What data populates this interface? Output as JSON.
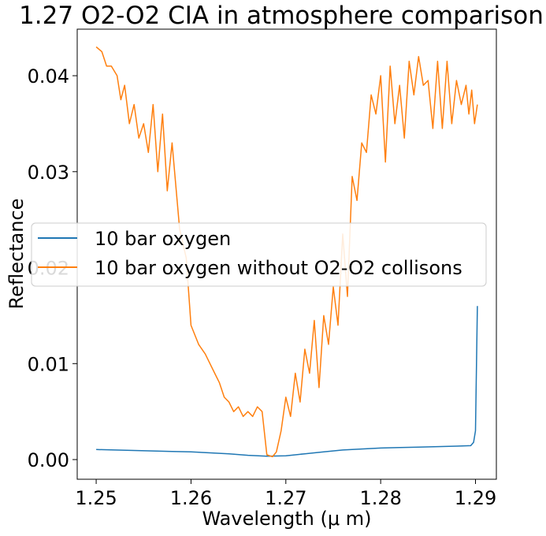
{
  "chart_data": {
    "type": "line",
    "title": "1.27 O2-O2 CIA in atmosphere comparison",
    "xlabel": "Wavelength (μ m)",
    "ylabel": "Reflectance",
    "xlim": [
      1.248,
      1.2922
    ],
    "ylim": [
      -0.00205,
      0.04485
    ],
    "x_ticks": [
      1.25,
      1.26,
      1.27,
      1.28,
      1.29
    ],
    "x_tick_labels": [
      "1.25",
      "1.26",
      "1.27",
      "1.28",
      "1.29"
    ],
    "y_ticks": [
      0.0,
      0.01,
      0.02,
      0.03,
      0.04
    ],
    "y_tick_labels": [
      "0.00",
      "0.01",
      "0.02",
      "0.03",
      "0.04"
    ],
    "grid": false,
    "legend_position": "center-left",
    "series": [
      {
        "name": "10 bar oxygen",
        "color": "#1f77b4",
        "x": [
          1.25,
          1.252,
          1.254,
          1.256,
          1.258,
          1.26,
          1.262,
          1.264,
          1.266,
          1.268,
          1.27,
          1.272,
          1.274,
          1.276,
          1.278,
          1.28,
          1.282,
          1.284,
          1.286,
          1.288,
          1.2895,
          1.2898,
          1.29,
          1.2902
        ],
        "y": [
          0.00105,
          0.001,
          0.00095,
          0.0009,
          0.00085,
          0.0008,
          0.0007,
          0.0006,
          0.00045,
          0.00035,
          0.0004,
          0.0006,
          0.0008,
          0.001,
          0.0011,
          0.0012,
          0.00125,
          0.0013,
          0.00135,
          0.0014,
          0.00145,
          0.0018,
          0.003,
          0.016
        ]
      },
      {
        "name": "10 bar oxygen without O2-O2 collisons",
        "color": "#ff7f0e",
        "x": [
          1.25,
          1.2506,
          1.2511,
          1.2516,
          1.2522,
          1.2526,
          1.253,
          1.2535,
          1.254,
          1.2545,
          1.255,
          1.2555,
          1.256,
          1.2565,
          1.257,
          1.2575,
          1.258,
          1.2588,
          1.2595,
          1.26,
          1.2608,
          1.2615,
          1.262,
          1.2625,
          1.263,
          1.2635,
          1.264,
          1.2645,
          1.265,
          1.2655,
          1.266,
          1.2665,
          1.267,
          1.2675,
          1.268,
          1.2686,
          1.269,
          1.2695,
          1.27,
          1.2705,
          1.271,
          1.2715,
          1.272,
          1.2725,
          1.273,
          1.2735,
          1.274,
          1.2745,
          1.275,
          1.2755,
          1.276,
          1.2765,
          1.277,
          1.2775,
          1.278,
          1.2785,
          1.279,
          1.2795,
          1.28,
          1.2805,
          1.281,
          1.2815,
          1.282,
          1.2825,
          1.283,
          1.2835,
          1.284,
          1.2845,
          1.285,
          1.2855,
          1.286,
          1.2865,
          1.287,
          1.2875,
          1.288,
          1.2885,
          1.289,
          1.2893,
          1.2896,
          1.2899,
          1.2902
        ],
        "y": [
          0.043,
          0.0425,
          0.041,
          0.041,
          0.04,
          0.0375,
          0.039,
          0.035,
          0.037,
          0.0335,
          0.035,
          0.032,
          0.037,
          0.03,
          0.036,
          0.028,
          0.033,
          0.024,
          0.021,
          0.014,
          0.012,
          0.011,
          0.01,
          0.009,
          0.008,
          0.0065,
          0.006,
          0.005,
          0.0055,
          0.0045,
          0.005,
          0.0045,
          0.0055,
          0.005,
          0.0005,
          0.0003,
          0.0008,
          0.003,
          0.0065,
          0.0045,
          0.009,
          0.006,
          0.0115,
          0.009,
          0.0145,
          0.0075,
          0.015,
          0.012,
          0.018,
          0.014,
          0.0235,
          0.017,
          0.0295,
          0.027,
          0.033,
          0.032,
          0.038,
          0.036,
          0.04,
          0.031,
          0.041,
          0.035,
          0.039,
          0.0335,
          0.0415,
          0.038,
          0.042,
          0.039,
          0.0395,
          0.0345,
          0.0415,
          0.0345,
          0.0415,
          0.035,
          0.0395,
          0.037,
          0.039,
          0.036,
          0.0385,
          0.035,
          0.037
        ]
      }
    ]
  }
}
